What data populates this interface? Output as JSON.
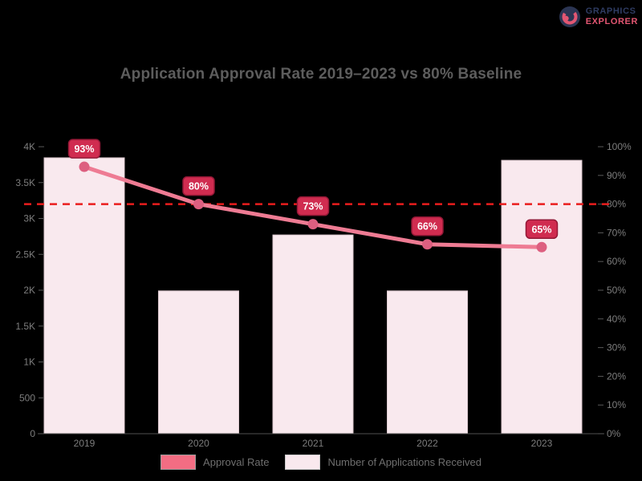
{
  "brand": {
    "line1": "GRAPHICS",
    "line2": "EXPLORER"
  },
  "chart_data": {
    "type": "bar",
    "title": "Application Approval Rate 2019–2023 vs 80% Baseline",
    "categories": [
      "2019",
      "2020",
      "2021",
      "2022",
      "2023"
    ],
    "series": [
      {
        "name": "Approval Rate",
        "type": "line",
        "values": [
          93,
          80,
          73,
          66,
          65
        ],
        "labels": [
          "93%",
          "80%",
          "73%",
          "66%",
          "65%"
        ],
        "unit": "%",
        "color": "#ee7b93",
        "marker_color": "#dd5f80"
      },
      {
        "name": "Number of Applications Received",
        "type": "bar",
        "values": [
          3845,
          1990,
          2770,
          1990,
          3810
        ],
        "color": "#f9e9ee",
        "border_color": "#ddc9cf"
      }
    ],
    "benchmark": {
      "value": 80,
      "label": "80%",
      "color": "#ea1d1d",
      "style": "dashed"
    },
    "left_axis": {
      "min": 0,
      "max": 4000,
      "ticks": [
        "0",
        "500",
        "1K",
        "1.5K",
        "2K",
        "2.5K",
        "3K",
        "3.5K",
        "4K"
      ]
    },
    "right_axis": {
      "min": 0,
      "max": 100,
      "ticks": [
        "0%",
        "10%",
        "20%",
        "30%",
        "40%",
        "50%",
        "60%",
        "70%",
        "80%",
        "90%",
        "100%"
      ]
    },
    "badge": {
      "fill": "#d02c50",
      "border": "#931836",
      "text_color": "#ffffff"
    },
    "legend": [
      {
        "label": "Approval Rate",
        "color": "#f26d83",
        "border": "#9b9b9b"
      },
      {
        "label": "Number of Applications Received",
        "color": "#f9e9ee",
        "border": "#c9c9c9"
      }
    ],
    "grid": false,
    "legend_position": "bottom"
  }
}
